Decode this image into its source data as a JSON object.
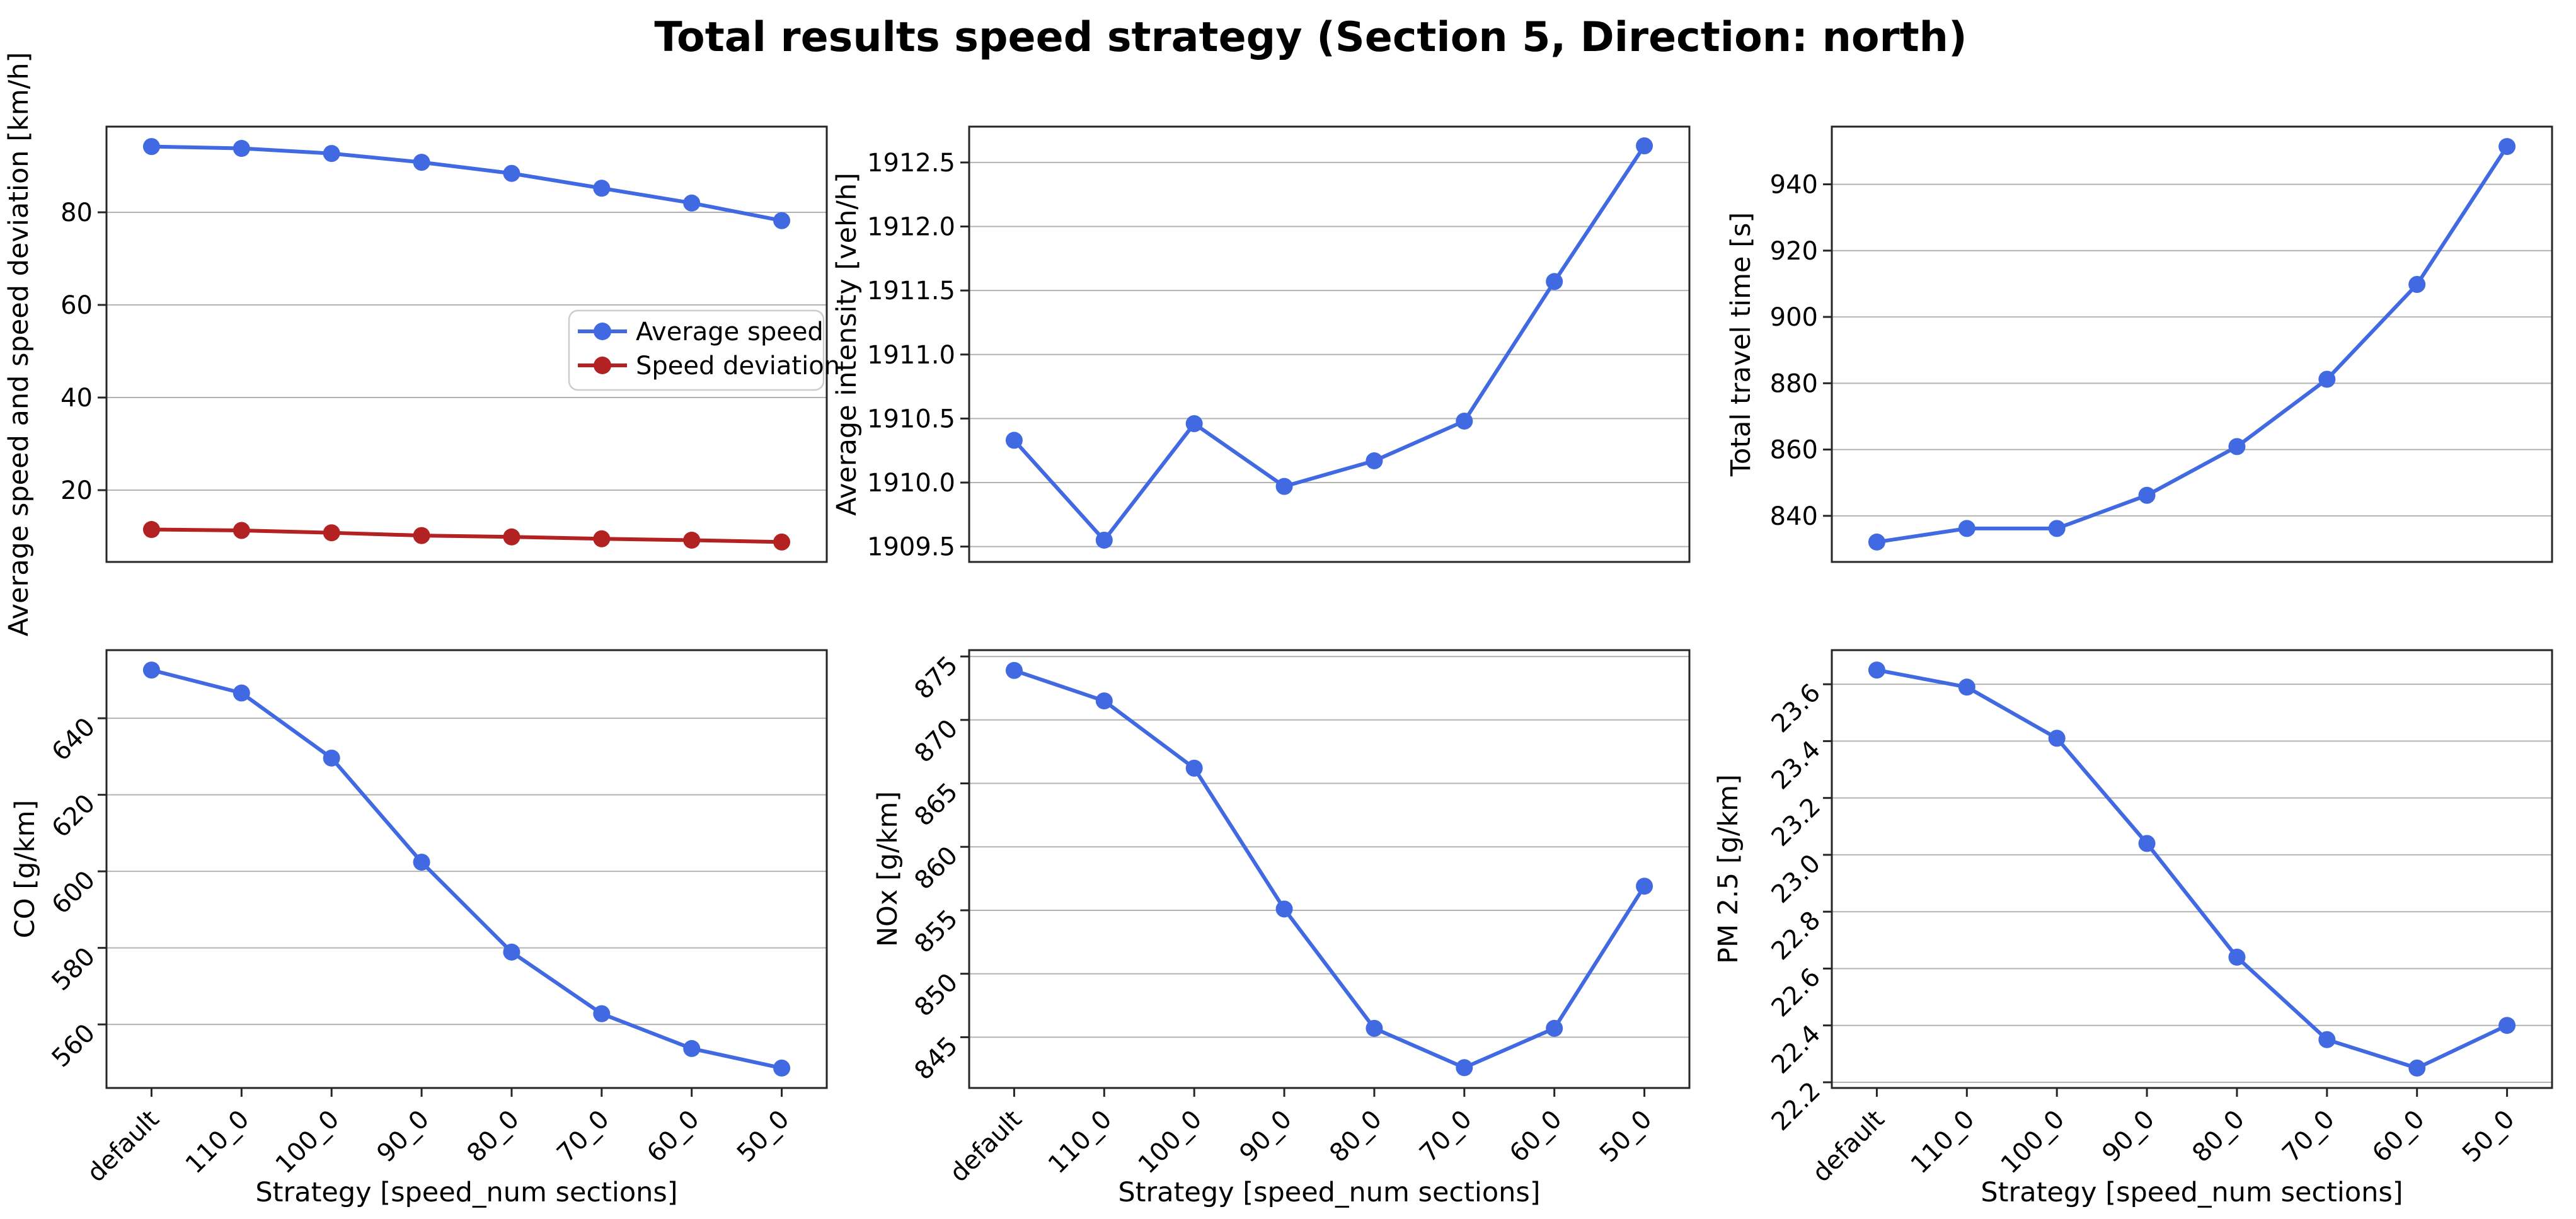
{
  "figure": {
    "title": "Total results speed strategy (Section 5, Direction: north)",
    "background": "#ffffff"
  },
  "colors": {
    "blue_line": "#4169e1",
    "red_line": "#b22222",
    "grid": "#b3b3b3",
    "spine": "#262626",
    "text": "#000000",
    "legend_border": "#cccccc"
  },
  "chart_data": [
    {
      "id": "speed",
      "type": "line",
      "ylabel": "Average speed and speed deviation [km/h]",
      "xlabel": "",
      "categories": [
        "default",
        "110_0",
        "100_0",
        "90_0",
        "80_0",
        "70_0",
        "60_0",
        "50_0"
      ],
      "series": [
        {
          "name": "Average speed",
          "color": "#4169e1",
          "values": [
            94.2,
            93.8,
            92.7,
            90.8,
            88.4,
            85.2,
            82.0,
            78.2
          ]
        },
        {
          "name": "Speed deviation",
          "color": "#b22222",
          "values": [
            11.5,
            11.3,
            10.8,
            10.2,
            9.9,
            9.5,
            9.2,
            8.8
          ]
        }
      ],
      "ylim": [
        4.5,
        98.5
      ],
      "yticks": [
        "20",
        "40",
        "60",
        "80"
      ],
      "ytick_rotation": 0,
      "grid": "horizontal",
      "legend": true,
      "legend_position": "center right",
      "show_x_labels": false
    },
    {
      "id": "intensity",
      "type": "line",
      "ylabel": "Average intensity [veh/h]",
      "xlabel": "",
      "categories": [
        "default",
        "110_0",
        "100_0",
        "90_0",
        "80_0",
        "70_0",
        "60_0",
        "50_0"
      ],
      "series": [
        {
          "name": "Average intensity",
          "color": "#4169e1",
          "values": [
            1910.33,
            1909.55,
            1910.46,
            1909.97,
            1910.17,
            1910.48,
            1911.57,
            1912.63
          ]
        }
      ],
      "ylim": [
        1909.38,
        1912.78
      ],
      "yticks": [
        "1909.5",
        "1910.0",
        "1910.5",
        "1911.0",
        "1911.5",
        "1912.0",
        "1912.5"
      ],
      "ytick_rotation": 0,
      "grid": "horizontal",
      "legend": false,
      "show_x_labels": false
    },
    {
      "id": "travel-time",
      "type": "line",
      "ylabel": "Total travel time [s]",
      "xlabel": "",
      "categories": [
        "default",
        "110_0",
        "100_0",
        "90_0",
        "80_0",
        "70_0",
        "60_0",
        "50_0"
      ],
      "series": [
        {
          "name": "Total travel time",
          "color": "#4169e1",
          "values": [
            832.1,
            836.2,
            836.2,
            846.2,
            860.9,
            881.2,
            909.8,
            951.4
          ]
        }
      ],
      "ylim": [
        826.1,
        957.4
      ],
      "yticks": [
        "840",
        "860",
        "880",
        "900",
        "920",
        "940"
      ],
      "ytick_rotation": 0,
      "grid": "horizontal",
      "legend": false,
      "show_x_labels": false
    },
    {
      "id": "co",
      "type": "line",
      "ylabel": "CO [g/km]",
      "xlabel": "Strategy [speed_num sections]",
      "categories": [
        "default",
        "110_0",
        "100_0",
        "90_0",
        "80_0",
        "70_0",
        "60_0",
        "50_0"
      ],
      "series": [
        {
          "name": "CO",
          "color": "#4169e1",
          "values": [
            652.6,
            646.6,
            629.6,
            602.4,
            578.9,
            562.8,
            553.7,
            548.6
          ]
        }
      ],
      "ylim": [
        543.4,
        657.8
      ],
      "yticks": [
        "560",
        "580",
        "600",
        "620",
        "640"
      ],
      "ytick_rotation": 45,
      "grid": "horizontal",
      "legend": false,
      "show_x_labels": true
    },
    {
      "id": "nox",
      "type": "line",
      "ylabel": "NOx [g/km]",
      "xlabel": "Strategy [speed_num sections]",
      "categories": [
        "default",
        "110_0",
        "100_0",
        "90_0",
        "80_0",
        "70_0",
        "60_0",
        "50_0"
      ],
      "series": [
        {
          "name": "NOx",
          "color": "#4169e1",
          "values": [
            873.9,
            871.5,
            866.2,
            855.1,
            845.7,
            842.6,
            845.7,
            856.9
          ]
        }
      ],
      "ylim": [
        841.0,
        875.5
      ],
      "yticks": [
        "845",
        "850",
        "855",
        "860",
        "865",
        "870",
        "875"
      ],
      "ytick_rotation": 45,
      "grid": "horizontal",
      "legend": false,
      "show_x_labels": true
    },
    {
      "id": "pm25",
      "type": "line",
      "ylabel": "PM 2.5 [g/km]",
      "xlabel": "Strategy [speed_num sections]",
      "categories": [
        "default",
        "110_0",
        "100_0",
        "90_0",
        "80_0",
        "70_0",
        "60_0",
        "50_0"
      ],
      "series": [
        {
          "name": "PM 2.5",
          "color": "#4169e1",
          "values": [
            23.65,
            23.59,
            23.41,
            23.04,
            22.64,
            22.35,
            22.25,
            22.4
          ]
        }
      ],
      "ylim": [
        22.18,
        23.72
      ],
      "yticks": [
        "22.2",
        "22.4",
        "22.6",
        "22.8",
        "23.0",
        "23.2",
        "23.4",
        "23.6"
      ],
      "ytick_rotation": 45,
      "grid": "horizontal",
      "legend": false,
      "show_x_labels": true
    }
  ]
}
